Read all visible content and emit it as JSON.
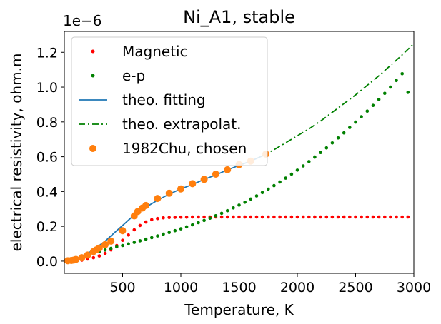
{
  "chart_data": {
    "type": "scatter",
    "title": "Ni_A1, stable",
    "xlabel": "Temperature, K",
    "ylabel": "electrical resistivity, ohm.m",
    "offset_text": "1e−6",
    "xlim": [
      0,
      3000
    ],
    "ylim": [
      -0.07,
      1.32
    ],
    "y_scale_factor": 1e-06,
    "xticks": [
      500,
      1000,
      1500,
      2000,
      2500,
      3000
    ],
    "xtick_labels": [
      "500",
      "1000",
      "1500",
      "2000",
      "2500",
      "3000"
    ],
    "yticks": [
      0.0,
      0.2,
      0.4,
      0.6,
      0.8,
      1.0,
      1.2
    ],
    "ytick_labels": [
      "0.0",
      "0.2",
      "0.4",
      "0.6",
      "0.8",
      "1.0",
      "1.2"
    ],
    "grid": false,
    "legend_position": "upper-left",
    "colors": {
      "magnetic": "#ff0000",
      "ep": "#008000",
      "fitting": "#1f77b4",
      "extrapolation": "#008000",
      "chu": "#ff7f0e"
    },
    "series": [
      {
        "name": "Magnetic",
        "style": "dots",
        "x": [
          50,
          100,
          150,
          200,
          250,
          300,
          350,
          400,
          450,
          500,
          550,
          600,
          650,
          700,
          750,
          800,
          850,
          900,
          950,
          1000,
          1050,
          1100,
          1150,
          1200,
          1250,
          1300,
          1350,
          1400,
          1450,
          1500,
          1550,
          1600,
          1650,
          1700,
          1750,
          1800,
          1850,
          1900,
          1950,
          2000,
          2050,
          2100,
          2150,
          2200,
          2250,
          2300,
          2350,
          2400,
          2450,
          2500,
          2550,
          2600,
          2650,
          2700,
          2750,
          2800,
          2850,
          2900,
          2950
        ],
        "y": [
          0.0,
          0.002,
          0.006,
          0.012,
          0.02,
          0.03,
          0.045,
          0.065,
          0.09,
          0.12,
          0.15,
          0.18,
          0.205,
          0.225,
          0.238,
          0.245,
          0.249,
          0.251,
          0.252,
          0.253,
          0.253,
          0.254,
          0.254,
          0.254,
          0.254,
          0.254,
          0.254,
          0.254,
          0.254,
          0.254,
          0.254,
          0.254,
          0.254,
          0.254,
          0.254,
          0.254,
          0.254,
          0.254,
          0.254,
          0.254,
          0.254,
          0.254,
          0.254,
          0.254,
          0.254,
          0.254,
          0.254,
          0.254,
          0.254,
          0.254,
          0.254,
          0.254,
          0.254,
          0.254,
          0.254,
          0.254,
          0.254,
          0.254,
          0.254
        ]
      },
      {
        "name": "e-p",
        "style": "dots",
        "x": [
          50,
          100,
          150,
          200,
          250,
          300,
          350,
          400,
          450,
          500,
          550,
          600,
          650,
          700,
          750,
          800,
          850,
          900,
          950,
          1000,
          1050,
          1100,
          1150,
          1200,
          1250,
          1300,
          1350,
          1400,
          1450,
          1500,
          1550,
          1600,
          1650,
          1700,
          1750,
          1800,
          1850,
          1900,
          1950,
          2000,
          2050,
          2100,
          2150,
          2200,
          2250,
          2300,
          2350,
          2400,
          2450,
          2500,
          2550,
          2600,
          2650,
          2700,
          2750,
          2800,
          2850,
          2900,
          2950
        ],
        "y": [
          0.0,
          0.008,
          0.02,
          0.033,
          0.045,
          0.055,
          0.064,
          0.073,
          0.082,
          0.09,
          0.099,
          0.108,
          0.117,
          0.126,
          0.135,
          0.145,
          0.155,
          0.165,
          0.175,
          0.186,
          0.197,
          0.209,
          0.221,
          0.234,
          0.247,
          0.261,
          0.275,
          0.29,
          0.306,
          0.322,
          0.339,
          0.357,
          0.375,
          0.394,
          0.414,
          0.434,
          0.455,
          0.477,
          0.5,
          0.523,
          0.547,
          0.572,
          0.598,
          0.624,
          0.651,
          0.679,
          0.708,
          0.737,
          0.768,
          0.799,
          0.83,
          0.862,
          0.895,
          0.929,
          0.964,
          1.0,
          1.038,
          1.077,
          0.97
        ]
      },
      {
        "name": "theo. fitting",
        "style": "line",
        "x": [
          20,
          100,
          150,
          200,
          250,
          300,
          350,
          400,
          450,
          500,
          550,
          600,
          650,
          700,
          750,
          800,
          900,
          1000,
          1100,
          1200,
          1300,
          1400,
          1500,
          1600,
          1700,
          1730
        ],
        "y": [
          0.0,
          0.008,
          0.025,
          0.045,
          0.065,
          0.09,
          0.115,
          0.145,
          0.175,
          0.205,
          0.235,
          0.265,
          0.29,
          0.31,
          0.33,
          0.35,
          0.385,
          0.415,
          0.44,
          0.47,
          0.495,
          0.525,
          0.55,
          0.575,
          0.605,
          0.615
        ]
      },
      {
        "name": "theo. extrapolat.",
        "style": "dashdot",
        "x": [
          1700,
          1800,
          1900,
          2000,
          2100,
          2200,
          2300,
          2400,
          2500,
          2600,
          2700,
          2800,
          2900,
          3000
        ],
        "y": [
          0.605,
          0.64,
          0.68,
          0.72,
          0.76,
          0.805,
          0.855,
          0.905,
          0.955,
          1.01,
          1.065,
          1.125,
          1.185,
          1.25
        ]
      },
      {
        "name": "1982Chu, chosen",
        "style": "markers",
        "x": [
          30,
          60,
          80,
          100,
          150,
          200,
          250,
          275,
          300,
          350,
          400,
          500,
          600,
          630,
          670,
          700,
          800,
          900,
          1000,
          1100,
          1200,
          1300,
          1400,
          1500,
          1600,
          1730
        ],
        "y": [
          0.002,
          0.004,
          0.006,
          0.01,
          0.02,
          0.035,
          0.055,
          0.065,
          0.075,
          0.095,
          0.115,
          0.175,
          0.26,
          0.285,
          0.305,
          0.32,
          0.36,
          0.39,
          0.415,
          0.445,
          0.47,
          0.5,
          0.525,
          0.555,
          0.575,
          0.615
        ]
      }
    ]
  }
}
